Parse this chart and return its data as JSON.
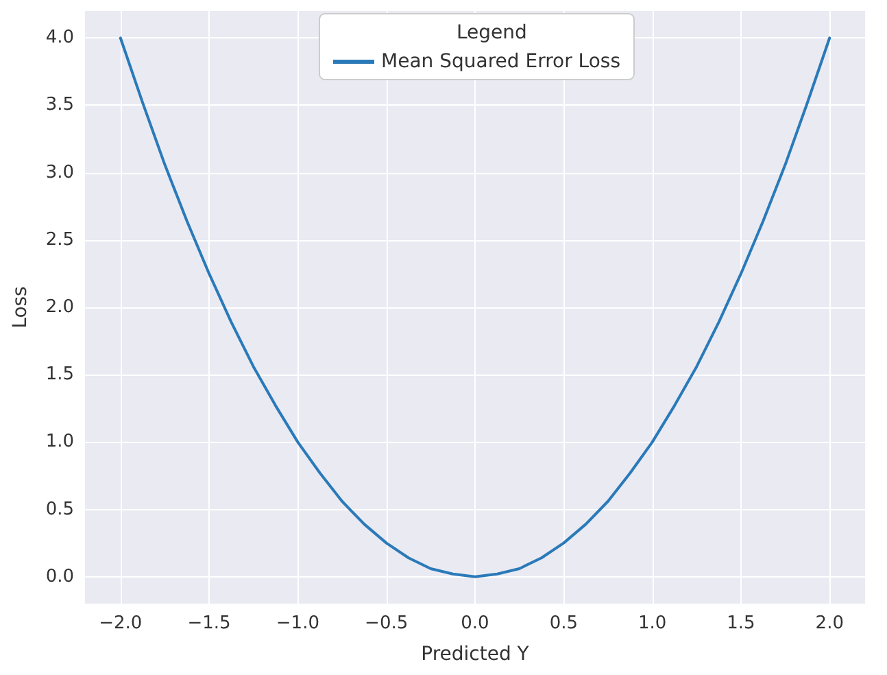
{
  "chart_data": {
    "type": "line",
    "xlabel": "Predicted Y",
    "ylabel": "Loss",
    "legend_title": "Legend",
    "legend": "top",
    "grid": true,
    "x": [
      -2,
      -1.875,
      -1.75,
      -1.625,
      -1.5,
      -1.375,
      -1.25,
      -1.125,
      -1,
      -0.875,
      -0.75,
      -0.625,
      -0.5,
      -0.375,
      -0.25,
      -0.125,
      0,
      0.125,
      0.25,
      0.375,
      0.5,
      0.625,
      0.75,
      0.875,
      1,
      1.125,
      1.25,
      1.375,
      1.5,
      1.625,
      1.75,
      1.875,
      2
    ],
    "series": [
      {
        "name": "Mean Squared Error Loss",
        "color": "#2a7ab9",
        "values": [
          4,
          3.52,
          3.06,
          2.64,
          2.25,
          1.89,
          1.56,
          1.27,
          1,
          0.77,
          0.56,
          0.39,
          0.25,
          0.14,
          0.06,
          0.02,
          0,
          0.02,
          0.06,
          0.14,
          0.25,
          0.39,
          0.56,
          0.77,
          1,
          1.27,
          1.56,
          1.89,
          2.25,
          2.64,
          3.06,
          3.52,
          4
        ]
      }
    ],
    "xlim": [
      -2.2,
      2.2
    ],
    "ylim": [
      -0.2,
      4.2
    ],
    "xticks": [
      {
        "value": -2,
        "label": "−2.0"
      },
      {
        "value": -1.5,
        "label": "−1.5"
      },
      {
        "value": -1,
        "label": "−1.0"
      },
      {
        "value": -0.5,
        "label": "−0.5"
      },
      {
        "value": 0,
        "label": "0.0"
      },
      {
        "value": 0.5,
        "label": "0.5"
      },
      {
        "value": 1,
        "label": "1.0"
      },
      {
        "value": 1.5,
        "label": "1.5"
      },
      {
        "value": 2,
        "label": "2.0"
      }
    ],
    "yticks": [
      {
        "value": 0,
        "label": "0.0"
      },
      {
        "value": 0.5,
        "label": "0.5"
      },
      {
        "value": 1,
        "label": "1.0"
      },
      {
        "value": 1.5,
        "label": "1.5"
      },
      {
        "value": 2,
        "label": "2.0"
      },
      {
        "value": 2.5,
        "label": "2.5"
      },
      {
        "value": 3,
        "label": "3.0"
      },
      {
        "value": 3.5,
        "label": "3.5"
      },
      {
        "value": 4,
        "label": "4.0"
      }
    ]
  }
}
